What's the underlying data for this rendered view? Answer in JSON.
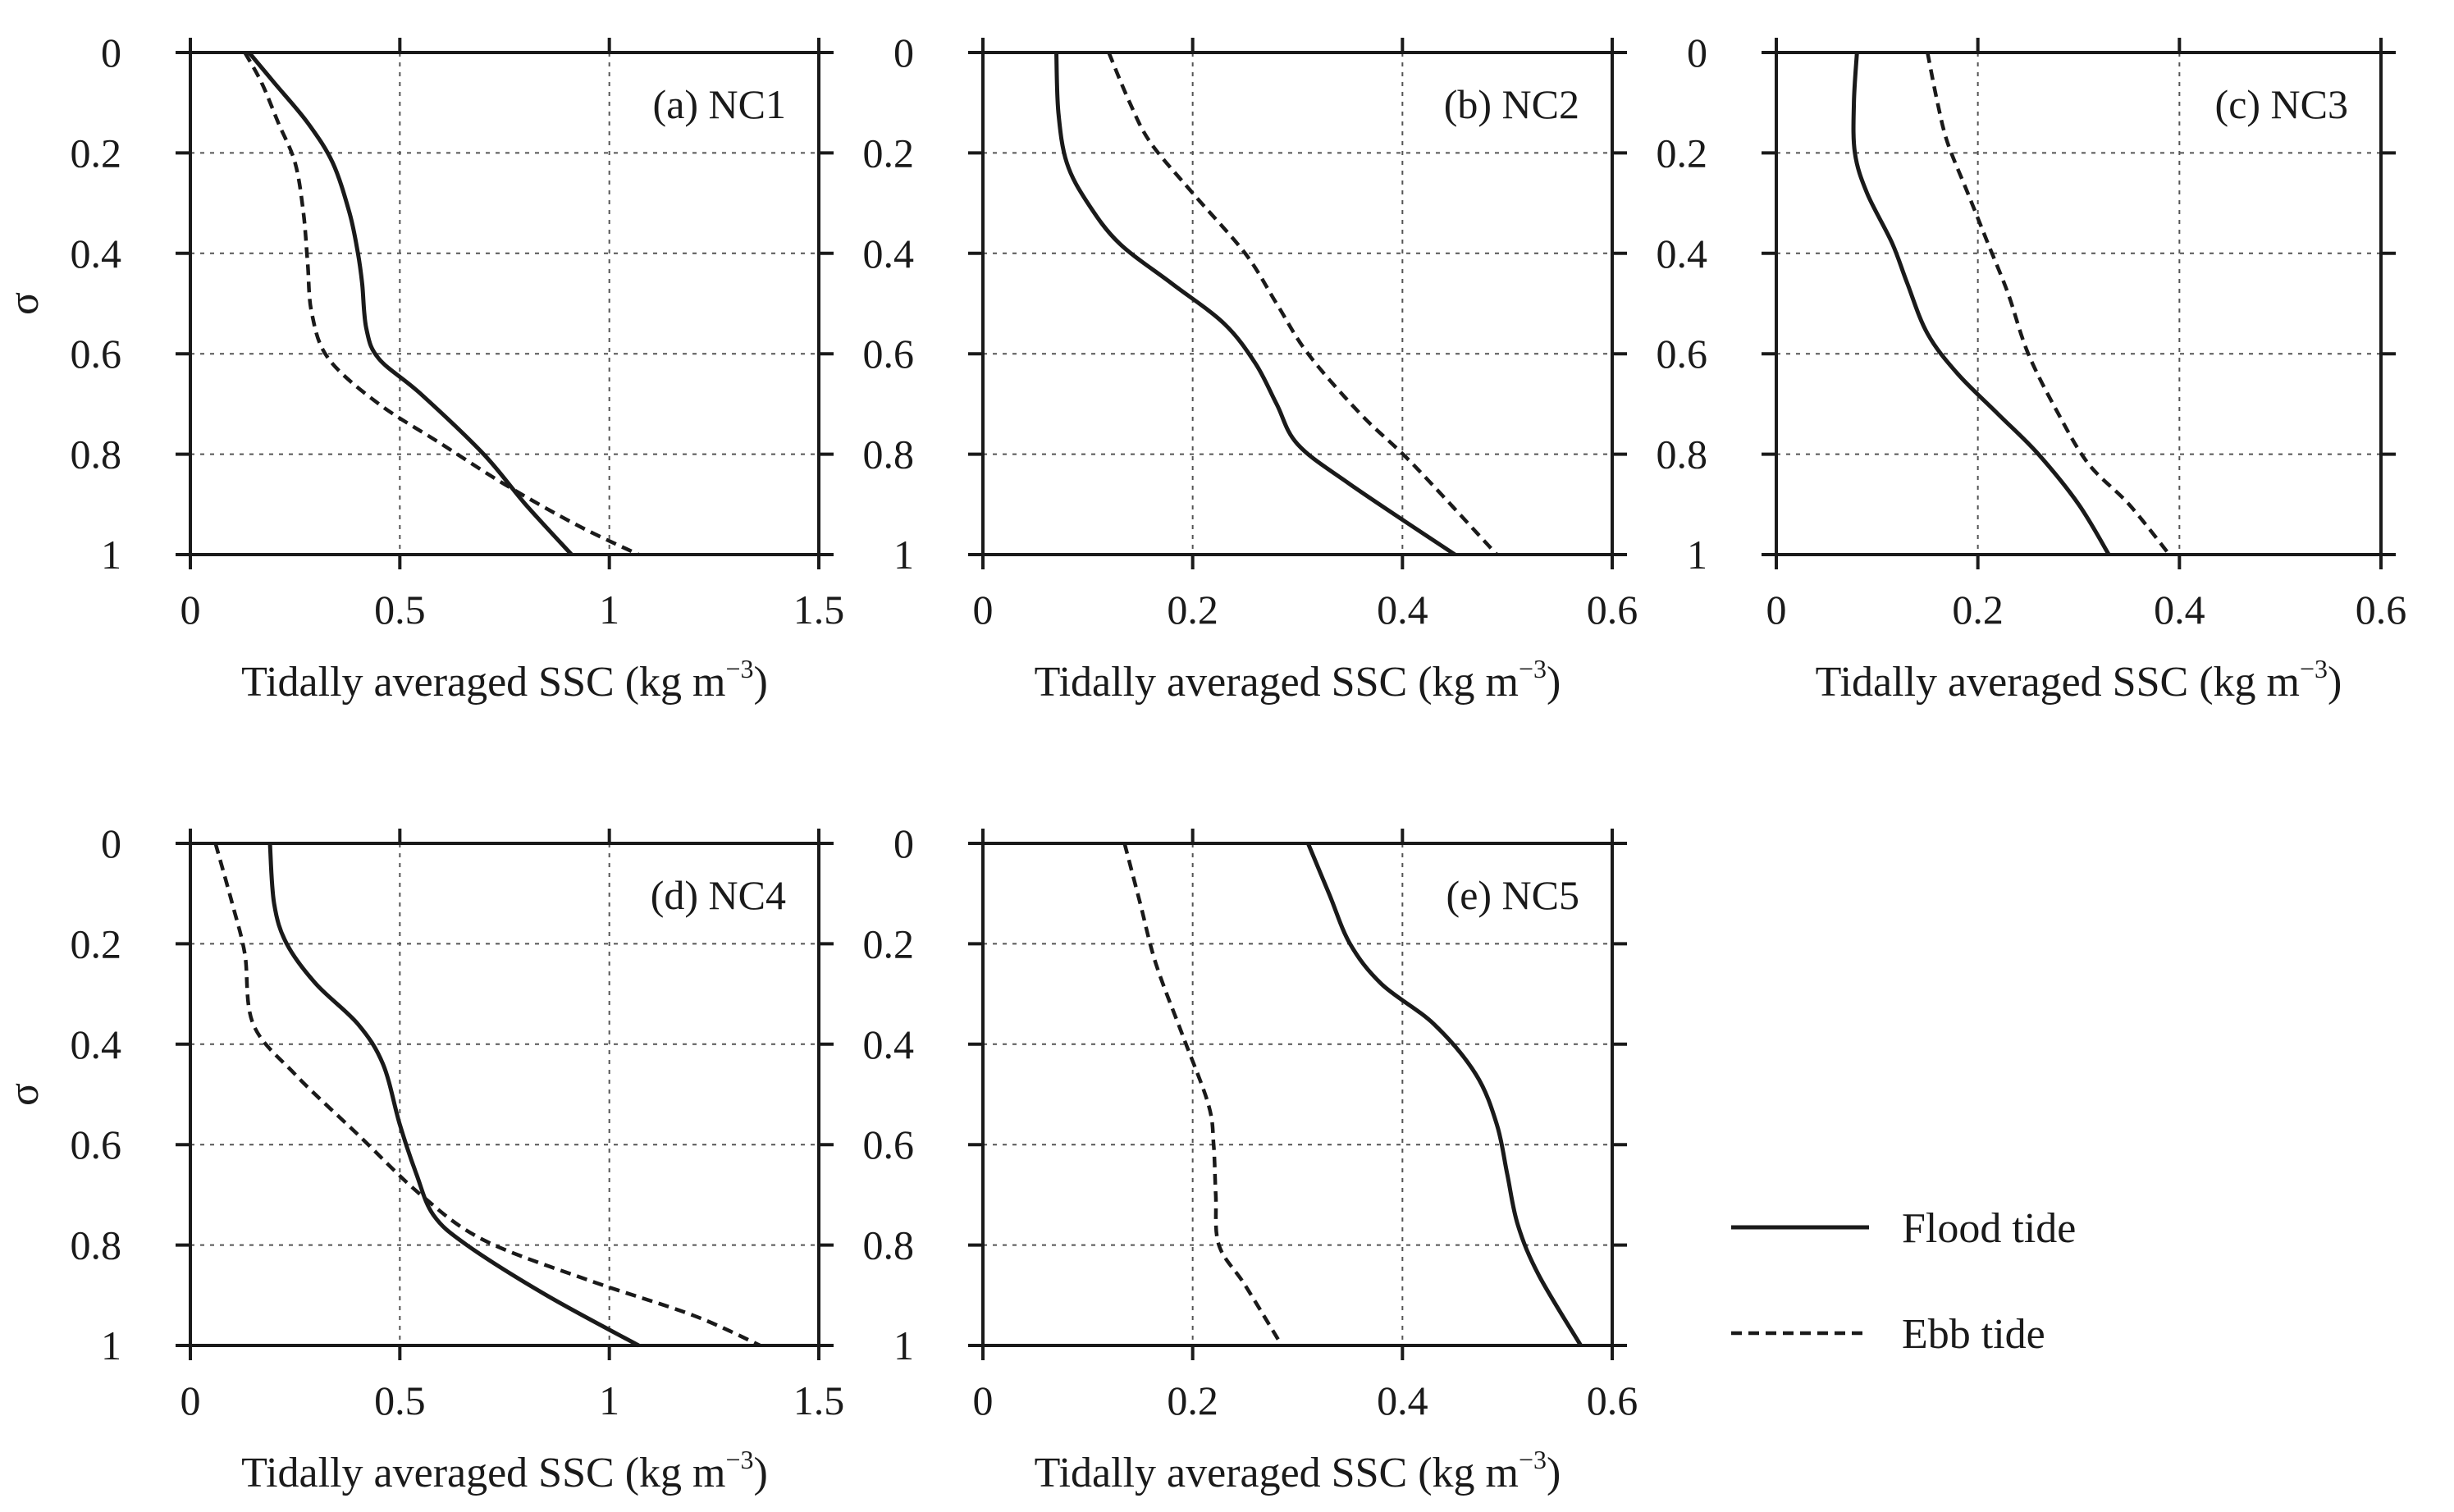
{
  "chart_data": [
    {
      "type": "line",
      "panel_label": "(a) NC1",
      "xlabel": "Tidally averaged SSC",
      "xlabel_unit": "(kg m",
      "xlabel_exp": "−3",
      "xlabel_close": ")",
      "ylabel": "σ",
      "xlim": [
        0,
        1.5
      ],
      "ylim": [
        1,
        0
      ],
      "xticks": [
        0,
        0.5,
        1,
        1.5
      ],
      "xtick_labels": [
        "0",
        "0.5",
        "1",
        "1.5"
      ],
      "yticks": [
        0,
        0.2,
        0.4,
        0.6,
        0.8,
        1
      ],
      "ytick_labels": [
        "0",
        "0.2",
        "0.4",
        "0.6",
        "0.8",
        "1"
      ],
      "grid": true,
      "series": [
        {
          "name": "Flood tide",
          "x": [
            0.14,
            0.2,
            0.28,
            0.34,
            0.38,
            0.4,
            0.41,
            0.42,
            0.45,
            0.55,
            0.7,
            0.8,
            0.91
          ],
          "y": [
            0,
            0.06,
            0.14,
            0.22,
            0.32,
            0.4,
            0.46,
            0.55,
            0.61,
            0.68,
            0.8,
            0.9,
            1
          ]
        },
        {
          "name": "Ebb tide",
          "x": [
            0.13,
            0.17,
            0.21,
            0.25,
            0.27,
            0.28,
            0.29,
            0.33,
            0.45,
            0.6,
            0.75,
            0.92,
            1.07
          ],
          "y": [
            0,
            0.06,
            0.14,
            0.22,
            0.32,
            0.42,
            0.52,
            0.61,
            0.7,
            0.78,
            0.86,
            0.94,
            1
          ]
        }
      ]
    },
    {
      "type": "line",
      "panel_label": "(b) NC2",
      "xlabel": "Tidally averaged SSC",
      "xlabel_unit": "(kg m",
      "xlabel_exp": "−3",
      "xlabel_close": ")",
      "ylabel": "σ",
      "xlim": [
        0,
        0.6
      ],
      "ylim": [
        1,
        0
      ],
      "xticks": [
        0,
        0.2,
        0.4,
        0.6
      ],
      "xtick_labels": [
        "0",
        "0.2",
        "0.4",
        "0.6"
      ],
      "yticks": [
        0,
        0.2,
        0.4,
        0.6,
        0.8,
        1
      ],
      "ytick_labels": [
        "0",
        "0.2",
        "0.4",
        "0.6",
        "0.8",
        "1"
      ],
      "grid": true,
      "series": [
        {
          "name": "Flood tide",
          "x": [
            0.07,
            0.072,
            0.08,
            0.1,
            0.13,
            0.18,
            0.23,
            0.26,
            0.28,
            0.3,
            0.35,
            0.45
          ],
          "y": [
            0,
            0.12,
            0.22,
            0.3,
            0.38,
            0.46,
            0.54,
            0.62,
            0.7,
            0.78,
            0.86,
            1
          ]
        },
        {
          "name": "Ebb tide",
          "x": [
            0.12,
            0.14,
            0.16,
            0.2,
            0.25,
            0.28,
            0.31,
            0.36,
            0.41,
            0.49
          ],
          "y": [
            0,
            0.1,
            0.18,
            0.28,
            0.4,
            0.5,
            0.6,
            0.72,
            0.82,
            1
          ]
        }
      ]
    },
    {
      "type": "line",
      "panel_label": "(c) NC3",
      "xlabel": "Tidally averaged SSC",
      "xlabel_unit": "(kg m",
      "xlabel_exp": "−3",
      "xlabel_close": ")",
      "ylabel": "σ",
      "xlim": [
        0,
        0.6
      ],
      "ylim": [
        1,
        0
      ],
      "xticks": [
        0,
        0.2,
        0.4,
        0.6
      ],
      "xtick_labels": [
        "0",
        "0.2",
        "0.4",
        "0.6"
      ],
      "yticks": [
        0,
        0.2,
        0.4,
        0.6,
        0.8,
        1
      ],
      "ytick_labels": [
        "0",
        "0.2",
        "0.4",
        "0.6",
        "0.8",
        "1"
      ],
      "grid": true,
      "series": [
        {
          "name": "Flood tide",
          "x": [
            0.08,
            0.077,
            0.078,
            0.09,
            0.115,
            0.13,
            0.15,
            0.18,
            0.22,
            0.26,
            0.3,
            0.33
          ],
          "y": [
            0,
            0.1,
            0.2,
            0.28,
            0.38,
            0.46,
            0.56,
            0.64,
            0.72,
            0.8,
            0.9,
            1
          ]
        },
        {
          "name": "Ebb tide",
          "x": [
            0.15,
            0.16,
            0.17,
            0.19,
            0.21,
            0.23,
            0.25,
            0.28,
            0.31,
            0.35,
            0.39
          ],
          "y": [
            0,
            0.1,
            0.18,
            0.28,
            0.38,
            0.48,
            0.6,
            0.72,
            0.82,
            0.9,
            1
          ]
        }
      ]
    },
    {
      "type": "line",
      "panel_label": "(d) NC4",
      "xlabel": "Tidally averaged SSC",
      "xlabel_unit": "(kg m",
      "xlabel_exp": "−3",
      "xlabel_close": ")",
      "ylabel": "σ",
      "xlim": [
        0,
        1.5
      ],
      "ylim": [
        1,
        0
      ],
      "xticks": [
        0,
        0.5,
        1,
        1.5
      ],
      "xtick_labels": [
        "0",
        "0.5",
        "1",
        "1.5"
      ],
      "yticks": [
        0,
        0.2,
        0.4,
        0.6,
        0.8,
        1
      ],
      "ytick_labels": [
        "0",
        "0.2",
        "0.4",
        "0.6",
        "0.8",
        "1"
      ],
      "grid": true,
      "series": [
        {
          "name": "Flood tide",
          "x": [
            0.19,
            0.2,
            0.23,
            0.3,
            0.4,
            0.46,
            0.5,
            0.54,
            0.58,
            0.66,
            0.85,
            1.07
          ],
          "y": [
            0,
            0.12,
            0.2,
            0.28,
            0.36,
            0.44,
            0.56,
            0.66,
            0.74,
            0.8,
            0.9,
            1
          ]
        },
        {
          "name": "Ebb tide",
          "x": [
            0.06,
            0.1,
            0.13,
            0.15,
            0.25,
            0.4,
            0.55,
            0.7,
            0.95,
            1.2,
            1.36
          ],
          "y": [
            0,
            0.12,
            0.22,
            0.36,
            0.46,
            0.58,
            0.7,
            0.79,
            0.87,
            0.94,
            1
          ]
        }
      ]
    },
    {
      "type": "line",
      "panel_label": "(e) NC5",
      "xlabel": "Tidally averaged SSC",
      "xlabel_unit": "(kg m",
      "xlabel_exp": "−3",
      "xlabel_close": ")",
      "ylabel": "σ",
      "xlim": [
        0,
        0.6
      ],
      "ylim": [
        1,
        0
      ],
      "xticks": [
        0,
        0.2,
        0.4,
        0.6
      ],
      "xtick_labels": [
        "0",
        "0.2",
        "0.4",
        "0.6"
      ],
      "yticks": [
        0,
        0.2,
        0.4,
        0.6,
        0.8,
        1
      ],
      "ytick_labels": [
        "0",
        "0.2",
        "0.4",
        "0.6",
        "0.8",
        "1"
      ],
      "grid": true,
      "series": [
        {
          "name": "Flood tide",
          "x": [
            0.31,
            0.33,
            0.35,
            0.38,
            0.43,
            0.47,
            0.49,
            0.5,
            0.51,
            0.53,
            0.57
          ],
          "y": [
            0,
            0.1,
            0.2,
            0.28,
            0.36,
            0.46,
            0.56,
            0.66,
            0.76,
            0.86,
            1
          ]
        },
        {
          "name": "Ebb tide",
          "x": [
            0.135,
            0.15,
            0.165,
            0.19,
            0.215,
            0.22,
            0.222,
            0.225,
            0.25,
            0.285
          ],
          "y": [
            0,
            0.12,
            0.24,
            0.38,
            0.52,
            0.6,
            0.7,
            0.8,
            0.88,
            1
          ]
        }
      ]
    }
  ],
  "legend": {
    "flood_label": "Flood tide",
    "ebb_label": "Ebb tide"
  }
}
